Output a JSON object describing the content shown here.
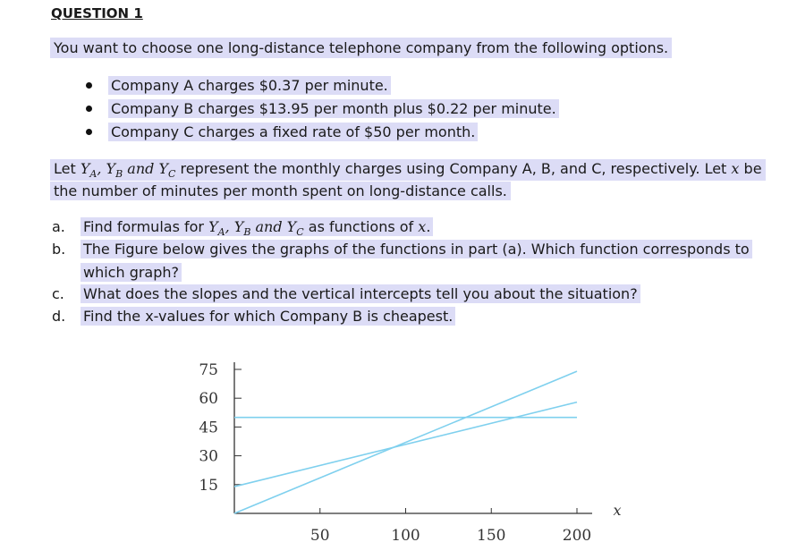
{
  "question": {
    "title": "QUESTION 1",
    "intro": "You want to choose one long-distance telephone company from the following options.",
    "bullets": [
      "Company A charges $0.37 per minute.",
      "Company B charges $13.95 per month plus $0.22 per minute.",
      "Company C charges a fixed rate of $50 per month."
    ],
    "para_1a": "Let ",
    "para_math_vars": "Y_A, Y_B and Y_C",
    "para_1b": " represent the monthly charges using Company A, B, and C, respectively. Let ",
    "para_math_x": "x",
    "para_1c": " be",
    "para_2": "the number of minutes per month spent on long-distance calls.",
    "items": [
      {
        "marker": "a.",
        "text_a": "Find formulas for ",
        "math": "Y_A, Y_B and Y_C",
        "text_b": " as functions of ",
        "math_x": "x",
        "text_c": "."
      },
      {
        "marker": "b.",
        "text": "The Figure below gives the graphs of the functions in part (a). Which function corresponds to",
        "text_cont": "which graph?"
      },
      {
        "marker": "c.",
        "text": "What does the slopes and the vertical intercepts tell you about the situation?"
      },
      {
        "marker": "d.",
        "text": "Find the x-values for which Company B is cheapest."
      }
    ]
  },
  "chart_data": {
    "type": "line",
    "xlabel": "x",
    "x_ticks": [
      50,
      100,
      150,
      200
    ],
    "y_ticks": [
      15,
      30,
      45,
      60,
      75
    ],
    "xlim": [
      0,
      200
    ],
    "ylim": [
      0,
      75
    ],
    "series": [
      {
        "points": [
          [
            0,
            0
          ],
          [
            200,
            74
          ]
        ],
        "color": "#7fd0ee"
      },
      {
        "points": [
          [
            0,
            13.95
          ],
          [
            200,
            57.95
          ]
        ],
        "color": "#7fd0ee"
      },
      {
        "points": [
          [
            0,
            50
          ],
          [
            200,
            50
          ]
        ],
        "color": "#7fd0ee"
      }
    ],
    "grid": false
  }
}
